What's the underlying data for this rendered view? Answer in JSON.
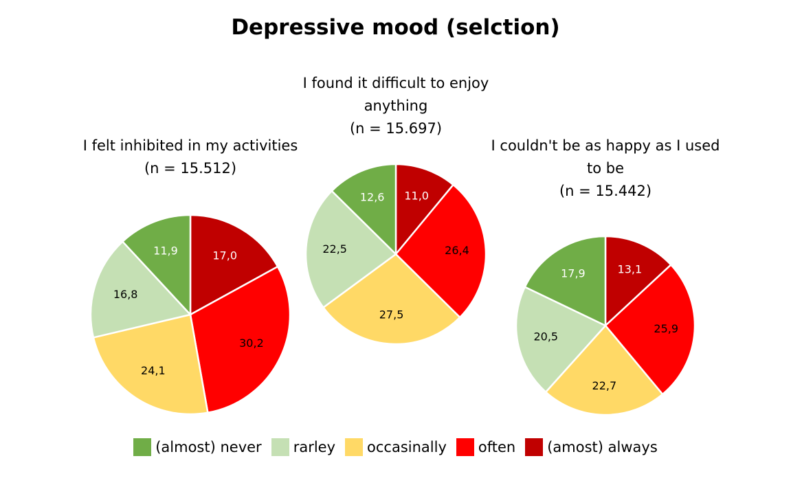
{
  "chart_data": {
    "title": "Depressive mood (selction)",
    "type": "pie",
    "categories": [
      "(almost) never",
      "rarley",
      "occasinally",
      "often",
      "(amost) always"
    ],
    "colors": [
      "#70ad47",
      "#c5e0b4",
      "#ffd966",
      "#ff0000",
      "#c00000"
    ],
    "label_colors": [
      "#ffffff",
      "#000000",
      "#000000",
      "#000000",
      "#ffffff"
    ],
    "charts": [
      {
        "title_lines": [
          "I felt inhibited in my activities",
          "(n = 15.512)"
        ],
        "values": [
          11.9,
          16.8,
          24.1,
          30.2,
          17.0
        ],
        "labels": [
          "11,9",
          "16,8",
          "24,1",
          "30,2",
          "17,0"
        ]
      },
      {
        "title_lines": [
          "I found it difficult to enjoy",
          "anything",
          "(n = 15.697)"
        ],
        "values": [
          12.6,
          22.5,
          27.5,
          26.4,
          11.0
        ],
        "labels": [
          "12,6",
          "22,5",
          "27,5",
          "26,4",
          "11,0"
        ]
      },
      {
        "title_lines": [
          "I couldn't be as happy as I used",
          "to be",
          "(n = 15.442)"
        ],
        "values": [
          17.9,
          20.5,
          22.7,
          25.9,
          13.1
        ],
        "labels": [
          "17,9",
          "20,5",
          "22,7",
          "25,9",
          "13,1"
        ]
      }
    ],
    "legend_position": "bottom"
  }
}
